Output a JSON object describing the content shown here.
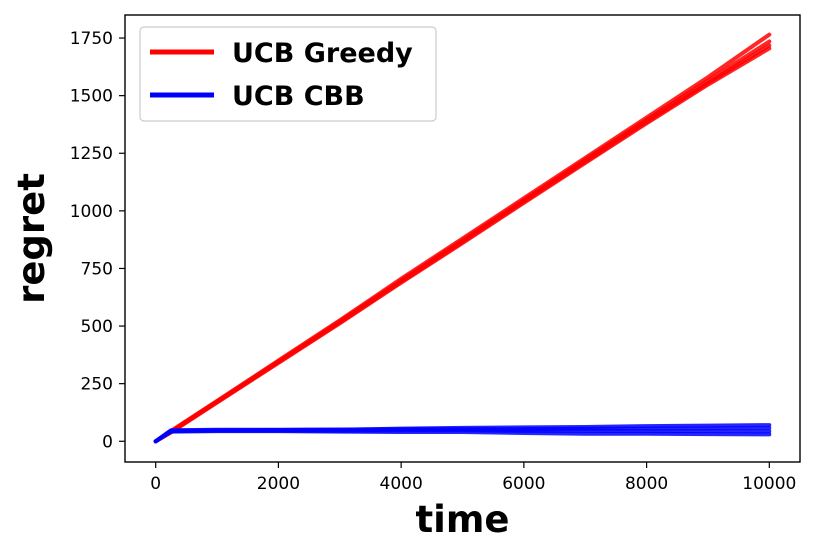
{
  "chart_data": {
    "type": "line",
    "title": "",
    "xlabel": "time",
    "ylabel": "regret",
    "xlim": [
      -500,
      10500
    ],
    "ylim": [
      -90,
      1850
    ],
    "x_ticks": [
      0,
      2000,
      4000,
      6000,
      8000,
      10000
    ],
    "y_ticks": [
      0,
      250,
      500,
      750,
      1000,
      1250,
      1500,
      1750
    ],
    "x_tick_labels": [
      "0",
      "2000",
      "4000",
      "6000",
      "8000",
      "10000"
    ],
    "y_tick_labels": [
      "0",
      "250",
      "500",
      "750",
      "1000",
      "1250",
      "1500",
      "1750"
    ],
    "grid": false,
    "legend_position": "top-left",
    "x": [
      0,
      250,
      1000,
      2000,
      3000,
      4000,
      5000,
      6000,
      7000,
      8000,
      9000,
      10000
    ],
    "series": [
      {
        "name": "UCB Greedy",
        "color": "#ff0000",
        "runs": [
          [
            0,
            45,
            175,
            350,
            525,
            705,
            880,
            1055,
            1230,
            1405,
            1580,
            1765
          ],
          [
            0,
            42,
            172,
            346,
            520,
            698,
            872,
            1047,
            1222,
            1395,
            1565,
            1735
          ],
          [
            0,
            40,
            170,
            343,
            516,
            692,
            865,
            1040,
            1213,
            1386,
            1555,
            1718
          ],
          [
            0,
            38,
            168,
            340,
            512,
            688,
            860,
            1035,
            1208,
            1380,
            1548,
            1705
          ]
        ]
      },
      {
        "name": "UCB CBB",
        "color": "#0000ff",
        "runs": [
          [
            0,
            48,
            50,
            50,
            51,
            52,
            53,
            53,
            54,
            55,
            56,
            57
          ],
          [
            0,
            46,
            48,
            49,
            50,
            55,
            58,
            60,
            62,
            66,
            68,
            70
          ],
          [
            0,
            44,
            46,
            46,
            46,
            47,
            48,
            45,
            45,
            44,
            44,
            43
          ],
          [
            0,
            42,
            44,
            44,
            42,
            40,
            40,
            36,
            33,
            33,
            31,
            30
          ]
        ]
      }
    ]
  }
}
